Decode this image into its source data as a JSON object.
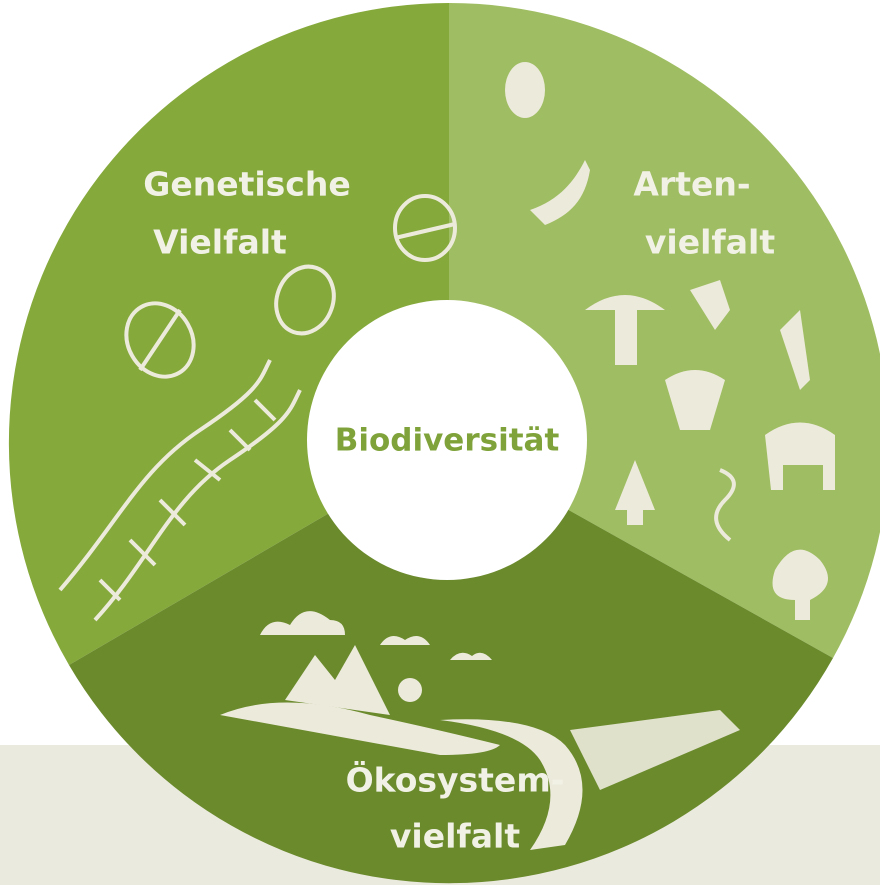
{
  "center_label": "Biodiversität",
  "segments": [
    {
      "label_lines": [
        "Genetische",
        "Vielfalt"
      ]
    },
    {
      "label_lines": [
        "Arten-",
        "vielfalt"
      ]
    },
    {
      "label_lines": [
        "Ökosystem-",
        "vielfalt"
      ]
    }
  ]
}
